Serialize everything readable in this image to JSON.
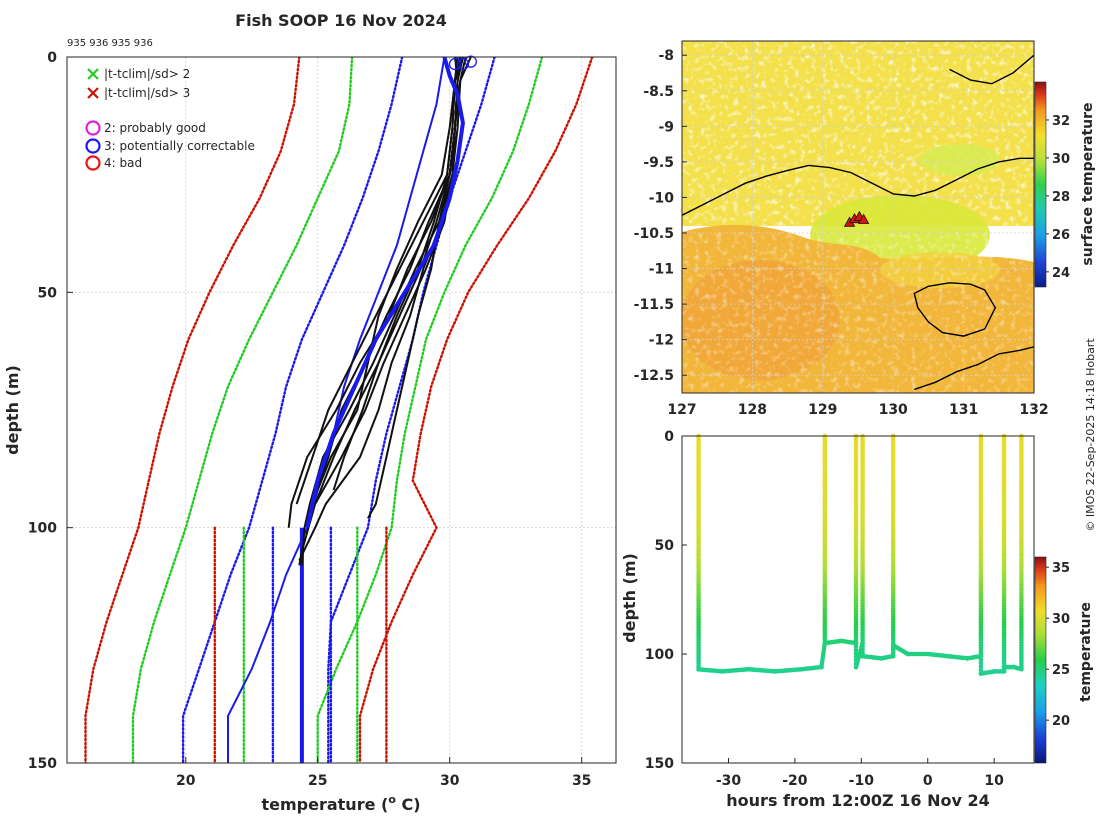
{
  "credit": "© IMOS 22-Sep-2025 14:18 Hobart",
  "colors": {
    "green": "#22cc22",
    "red": "#cc1100",
    "blue": "#1a1aee",
    "magenta": "#dd22dd",
    "black": "#111111",
    "axis": "#262626"
  },
  "chart_data": [
    {
      "id": "profile",
      "type": "line",
      "title": "Fish SOOP 16 Nov 2024",
      "subtitle": "935 936 935 936",
      "xlabel": "temperature (",
      "xlabel_sup": "o",
      "xlabel_end": " C)",
      "ylabel": "depth (m)",
      "xlim": [
        15.5,
        36.3
      ],
      "ylim": [
        0,
        150
      ],
      "xticks": [
        20,
        25,
        30,
        35
      ],
      "yticks": [
        0,
        50,
        100,
        150
      ],
      "legend": [
        {
          "symbol": "x",
          "color": "#22cc22",
          "label": "|t-tclim|/sd> 2"
        },
        {
          "symbol": "x",
          "color": "#cc1100",
          "label": "|t-tclim|/sd> 3"
        },
        {
          "symbol": "o",
          "color": "#dd22dd",
          "label": "2: probably good"
        },
        {
          "symbol": "o",
          "color": "#1a1aee",
          "label": "3: potentially correctable"
        },
        {
          "symbol": "o",
          "color": "#ee1111",
          "label": "4: bad"
        }
      ],
      "clim_mean": {
        "depth": [
          0,
          10,
          20,
          30,
          40,
          50,
          60,
          70,
          80,
          90,
          100,
          110,
          120,
          130,
          140,
          150
        ],
        "temp": [
          29.8,
          29.5,
          29.0,
          28.5,
          28.0,
          27.3,
          26.6,
          26.0,
          25.6,
          25.1,
          24.6,
          23.8,
          23.2,
          22.5,
          21.6,
          21.6
        ]
      },
      "clim_lines": [
        {
          "color": "#1a1aee",
          "depth": [
            0,
            10,
            20,
            30,
            40,
            50,
            60,
            70,
            80,
            90,
            100,
            110,
            120,
            130,
            140,
            150
          ],
          "temp": [
            28.2,
            27.8,
            27.3,
            26.7,
            26.0,
            25.2,
            24.4,
            23.8,
            23.4,
            22.9,
            22.4,
            21.7,
            21.1,
            20.5,
            19.9,
            19.9
          ]
        },
        {
          "color": "#1a1aee",
          "depth": [
            0,
            10,
            20,
            30,
            40,
            50,
            60,
            70,
            80,
            90,
            100,
            110,
            120,
            130,
            140,
            150
          ],
          "temp": [
            31.7,
            31.2,
            30.6,
            30.0,
            29.5,
            29.0,
            28.6,
            28.1,
            27.6,
            27.2,
            26.9,
            26.2,
            25.5,
            25.4,
            25.4,
            25.4
          ]
        },
        {
          "color": "#22cc22",
          "depth": [
            0,
            10,
            20,
            30,
            40,
            50,
            60,
            70,
            80,
            90,
            100,
            110,
            120,
            130,
            140,
            150
          ],
          "temp": [
            26.3,
            26.2,
            25.8,
            25.0,
            24.2,
            23.3,
            22.4,
            21.6,
            21.0,
            20.5,
            20.0,
            19.4,
            18.8,
            18.3,
            18.0,
            18.0
          ]
        },
        {
          "color": "#22cc22",
          "depth": [
            0,
            10,
            20,
            30,
            40,
            50,
            60,
            70,
            80,
            90,
            100,
            110,
            120,
            130,
            140,
            150
          ],
          "temp": [
            33.5,
            33.0,
            32.4,
            31.6,
            30.6,
            29.8,
            29.1,
            28.7,
            28.3,
            28.0,
            27.8,
            27.2,
            26.5,
            25.7,
            25.0,
            25.0
          ]
        },
        {
          "color": "#cc1100",
          "depth": [
            0,
            10,
            20,
            30,
            40,
            50,
            60,
            70,
            80,
            90,
            100,
            110,
            120,
            130,
            140,
            150
          ],
          "temp": [
            24.3,
            24.1,
            23.6,
            22.8,
            21.8,
            20.9,
            20.1,
            19.5,
            19.0,
            18.6,
            18.2,
            17.6,
            17.0,
            16.5,
            16.2,
            16.2
          ]
        },
        {
          "color": "#cc1100",
          "depth": [
            0,
            10,
            20,
            30,
            40,
            50,
            60,
            70,
            80,
            90,
            100,
            110,
            120,
            130,
            140,
            150
          ],
          "temp": [
            35.4,
            34.8,
            34.0,
            33.0,
            31.8,
            30.7,
            29.9,
            29.3,
            28.9,
            28.6,
            29.5,
            28.6,
            27.8,
            27.1,
            26.6,
            26.6
          ]
        },
        {
          "color": "#1a1aee",
          "depth": [
            100,
            150
          ],
          "temp": [
            23.3,
            23.3
          ]
        },
        {
          "color": "#1a1aee",
          "depth": [
            100,
            150
          ],
          "temp": [
            25.5,
            25.5
          ]
        },
        {
          "color": "#22cc22",
          "depth": [
            100,
            150
          ],
          "temp": [
            22.2,
            22.2
          ]
        },
        {
          "color": "#22cc22",
          "depth": [
            100,
            150
          ],
          "temp": [
            26.5,
            26.5
          ]
        },
        {
          "color": "#cc1100",
          "depth": [
            100,
            150
          ],
          "temp": [
            21.1,
            21.1
          ]
        },
        {
          "color": "#cc1100",
          "depth": [
            100,
            150
          ],
          "temp": [
            27.6,
            27.6
          ]
        }
      ],
      "bold_profile": {
        "depth": [
          100,
          150
        ],
        "temp": [
          24.4,
          24.4
        ]
      },
      "profiles": [
        {
          "depth": [
            0,
            5,
            15,
            25,
            35,
            45,
            55,
            65,
            75,
            85,
            95,
            100,
            108
          ],
          "temp": [
            30.3,
            30.3,
            30.2,
            30.1,
            29.6,
            28.7,
            27.9,
            27.1,
            26.2,
            25.2,
            24.7,
            24.5,
            24.4
          ]
        },
        {
          "depth": [
            0,
            5,
            15,
            25,
            35,
            45,
            55,
            65,
            75,
            85,
            95,
            100
          ],
          "temp": [
            30.2,
            30.3,
            30.2,
            30.0,
            29.3,
            28.4,
            27.7,
            26.6,
            25.7,
            24.6,
            24.0,
            23.9
          ]
        },
        {
          "depth": [
            0,
            5,
            15,
            25,
            35,
            45,
            55,
            65,
            75,
            85,
            95,
            105,
            108
          ],
          "temp": [
            30.5,
            30.3,
            30.2,
            30.1,
            29.8,
            29.1,
            28.3,
            27.5,
            26.8,
            25.9,
            24.9,
            24.4,
            24.3
          ]
        },
        {
          "depth": [
            0,
            5,
            15,
            25,
            35,
            45,
            55,
            65,
            75,
            85,
            95
          ],
          "temp": [
            30.4,
            30.2,
            30.1,
            29.9,
            29.0,
            28.1,
            27.2,
            26.3,
            25.4,
            24.8,
            24.2
          ]
        },
        {
          "depth": [
            0,
            5,
            15,
            25,
            35,
            45,
            55,
            65,
            75,
            85,
            95,
            100,
            107
          ],
          "temp": [
            30.6,
            30.4,
            30.3,
            30.1,
            29.7,
            29.0,
            28.5,
            27.8,
            27.3,
            26.6,
            25.3,
            24.9,
            24.3
          ]
        },
        {
          "depth": [
            0,
            5,
            15,
            25,
            35,
            45,
            55,
            65,
            75,
            85,
            95
          ],
          "temp": [
            30.3,
            30.2,
            30.1,
            29.9,
            29.4,
            28.8,
            28.0,
            27.3,
            26.4,
            25.6,
            24.9
          ]
        },
        {
          "depth": [
            0,
            5,
            15,
            25,
            35,
            45,
            55,
            65,
            75,
            85,
            92
          ],
          "temp": [
            30.3,
            30.2,
            30.0,
            29.7,
            28.8,
            28.0,
            27.3,
            26.9,
            26.5,
            25.5,
            25.0
          ]
        },
        {
          "depth": [
            0,
            5,
            15,
            25,
            35,
            45,
            55,
            65,
            75,
            85,
            95,
            98
          ],
          "temp": [
            30.8,
            30.4,
            30.2,
            30.0,
            29.6,
            29.3,
            28.8,
            28.4,
            28.0,
            27.6,
            27.2,
            26.9
          ]
        },
        {
          "depth": [
            0,
            5,
            15,
            25,
            35,
            45,
            55,
            65,
            75,
            85,
            95
          ],
          "temp": [
            30.5,
            30.3,
            30.2,
            30.0,
            29.2,
            28.5,
            27.6,
            26.8,
            25.9,
            25.4,
            24.8
          ]
        },
        {
          "depth": [
            0,
            5,
            15,
            25,
            35,
            45,
            55,
            65,
            75,
            85,
            92
          ],
          "temp": [
            30.4,
            30.3,
            30.2,
            30.0,
            29.5,
            28.9,
            28.1,
            27.3,
            26.7,
            26.0,
            25.6
          ]
        }
      ],
      "surface_circles": [
        {
          "temp": 30.2,
          "depth": 1.5
        },
        {
          "temp": 30.5,
          "depth": 1.5
        },
        {
          "temp": 30.8,
          "depth": 1.0
        }
      ]
    },
    {
      "id": "map",
      "type": "heatmap",
      "xlim": [
        127,
        132
      ],
      "ylim": [
        -12.75,
        -7.8
      ],
      "xticks": [
        "127",
        "128",
        "129",
        "130",
        "131",
        "132"
      ],
      "yticks": [
        "-8",
        "-8.5",
        "-9",
        "-9.5",
        "-10",
        "-10.5",
        "-11",
        "-11.5",
        "-12",
        "-12.5"
      ],
      "ytick_values": [
        -8,
        -8.5,
        -9,
        -9.5,
        -10,
        -10.5,
        -11,
        -11.5,
        -12,
        -12.5
      ],
      "colorbar_label": "surface temperature",
      "colorbar_ticks": [
        24,
        26,
        28,
        30,
        32
      ],
      "colorbar_range": [
        23.2,
        34.0
      ],
      "stations": [
        {
          "lon": 129.38,
          "lat": -10.35
        },
        {
          "lon": 129.45,
          "lat": -10.3
        },
        {
          "lon": 129.52,
          "lat": -10.27
        },
        {
          "lon": 129.58,
          "lat": -10.31
        }
      ],
      "coast_main": {
        "lon": [
          127.0,
          127.3,
          127.6,
          127.9,
          128.2,
          128.5,
          128.8,
          129.1,
          129.4,
          129.7,
          130.0,
          130.3,
          130.6,
          130.9,
          131.2,
          131.5,
          131.8,
          132.0
        ],
        "lat": [
          -10.25,
          -10.1,
          -9.95,
          -9.8,
          -9.7,
          -9.62,
          -9.55,
          -9.58,
          -9.65,
          -9.8,
          -9.95,
          -9.98,
          -9.9,
          -9.75,
          -9.6,
          -9.5,
          -9.45,
          -9.45
        ]
      },
      "coast_island": {
        "lon": [
          130.3,
          130.5,
          130.8,
          131.1,
          131.3,
          131.45,
          131.3,
          131.0,
          130.7,
          130.5,
          130.35,
          130.3
        ],
        "lat": [
          -11.35,
          -11.25,
          -11.2,
          -11.22,
          -11.3,
          -11.55,
          -11.85,
          -11.95,
          -11.9,
          -11.75,
          -11.55,
          -11.35
        ]
      },
      "coast_south": {
        "lon": [
          130.3,
          130.6,
          130.9,
          131.2,
          131.5,
          131.8,
          132.0
        ],
        "lat": [
          -12.7,
          -12.6,
          -12.45,
          -12.35,
          -12.2,
          -12.15,
          -12.1
        ]
      },
      "coast_north": {
        "lon": [
          130.8,
          131.1,
          131.4,
          131.7,
          132.0
        ],
        "lat": [
          -8.2,
          -8.35,
          -8.4,
          -8.25,
          -8.0
        ]
      }
    },
    {
      "id": "timeseries",
      "type": "scatter",
      "xlabel": "hours from 12:00Z 16 Nov 24",
      "ylabel": "depth (m)",
      "xlim": [
        -37,
        16
      ],
      "ylim": [
        0,
        150
      ],
      "xticks": [
        -30,
        -20,
        -10,
        0,
        10
      ],
      "yticks": [
        0,
        50,
        100,
        150
      ],
      "colorbar_label": "temperature",
      "colorbar_ticks": [
        20,
        25,
        30,
        35
      ],
      "colorbar_range": [
        15.8,
        36.0
      ],
      "casts": [
        -34.5,
        -15.5,
        -10.8,
        -9.8,
        -5.2,
        8.0,
        11.5,
        14.1
      ],
      "cast_temp": {
        "depth": [
          0,
          20,
          40,
          55,
          65,
          75,
          85,
          95,
          108
        ],
        "temp": [
          30.3,
          30.2,
          29.8,
          29.0,
          28.0,
          27.0,
          26.0,
          25.0,
          24.5
        ]
      },
      "bottom_track": {
        "hours": [
          -34.5,
          -31,
          -27,
          -23,
          -19,
          -16,
          -15.5,
          -13,
          -10.8,
          -10.8,
          -9.8,
          -9.8,
          -7,
          -5.2,
          -5.2,
          -3,
          0,
          3,
          6,
          8,
          8,
          10,
          11.5,
          11.5,
          13,
          14.1
        ],
        "depth": [
          107,
          108,
          107,
          108,
          107,
          106,
          95,
          94,
          95,
          106,
          95,
          101,
          102,
          101,
          96,
          100,
          100,
          101,
          102,
          101,
          109,
          108,
          108,
          106,
          106,
          107
        ]
      }
    }
  ]
}
